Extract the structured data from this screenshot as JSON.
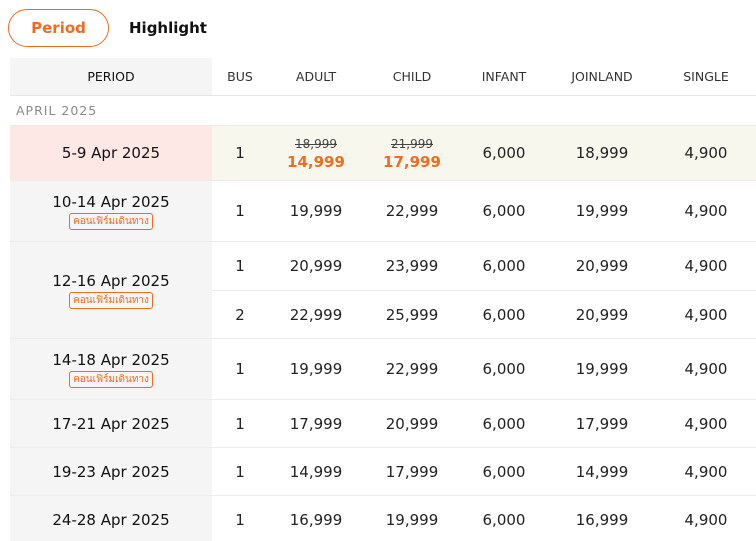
{
  "tabs": [
    {
      "label": "Period",
      "active": true
    },
    {
      "label": "Highlight",
      "active": false
    }
  ],
  "columns": {
    "period": "PERIOD",
    "bus": "BUS",
    "adult": "ADULT",
    "child": "CHILD",
    "infant": "INFANT",
    "joinland": "JOINLAND",
    "single": "SINGLE"
  },
  "month_label": "APRIL 2025",
  "accent_color": "#f26b21",
  "rows": [
    {
      "period": "5-9 Apr 2025",
      "bus": "1",
      "adult_old": "18,999",
      "adult": "14,999",
      "child_old": "21,999",
      "child": "17,999",
      "infant": "6,000",
      "joinland": "18,999",
      "single": "4,900"
    },
    {
      "period": "10-14 Apr 2025",
      "badge": "คอนเฟิร์มเดินทาง",
      "bus": "1",
      "adult": "19,999",
      "child": "22,999",
      "infant": "6,000",
      "joinland": "19,999",
      "single": "4,900"
    },
    {
      "period": "12-16 Apr 2025",
      "badge": "คอนเฟิร์มเดินทาง",
      "buses": [
        {
          "bus": "1",
          "adult": "20,999",
          "child": "23,999",
          "infant": "6,000",
          "joinland": "20,999",
          "single": "4,900"
        },
        {
          "bus": "2",
          "adult": "22,999",
          "child": "25,999",
          "infant": "6,000",
          "joinland": "20,999",
          "single": "4,900"
        }
      ]
    },
    {
      "period": "14-18 Apr 2025",
      "badge": "คอนเฟิร์มเดินทาง",
      "bus": "1",
      "adult": "19,999",
      "child": "22,999",
      "infant": "6,000",
      "joinland": "19,999",
      "single": "4,900"
    },
    {
      "period": "17-21 Apr 2025",
      "bus": "1",
      "adult": "17,999",
      "child": "20,999",
      "infant": "6,000",
      "joinland": "17,999",
      "single": "4,900"
    },
    {
      "period": "19-23 Apr 2025",
      "bus": "1",
      "adult": "14,999",
      "child": "17,999",
      "infant": "6,000",
      "joinland": "14,999",
      "single": "4,900"
    },
    {
      "period": "24-28 Apr 2025",
      "bus": "1",
      "adult": "16,999",
      "child": "19,999",
      "infant": "6,000",
      "joinland": "16,999",
      "single": "4,900"
    }
  ]
}
